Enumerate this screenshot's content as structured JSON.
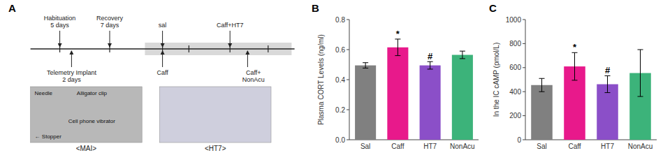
{
  "chart_data": [
    {
      "type": "diagram",
      "title": "A",
      "annotations": [
        "Habituation\n5 days",
        "Recovery\n7 days",
        "sal",
        "Caff+HT7",
        "Telemetry Implant\n2 days",
        "Caff",
        "Caff+\nNonAcu",
        "Needle",
        "Alligator clip",
        "Cell phone vibrator",
        "← Stopper",
        "<MAI>",
        "<HT7>"
      ]
    },
    {
      "type": "bar",
      "title": "B",
      "categories": [
        "Sal",
        "Caff",
        "HT7",
        "NonAcu"
      ],
      "values": [
        0.495,
        0.615,
        0.495,
        0.565
      ],
      "errors": [
        0.018,
        0.055,
        0.025,
        0.025
      ],
      "colors": [
        "#808080",
        "#E8198B",
        "#8B4FC8",
        "#3CB37A"
      ],
      "ylabel": "Plasma CORT Levels (ng/ml)",
      "ylim": [
        0,
        0.8
      ],
      "yticks": [
        {
          "value": 0,
          "label": "0.0"
        },
        0.2,
        0.4,
        0.6,
        0.8
      ],
      "annotations": [
        {
          "text": "*",
          "category": "Caff"
        },
        {
          "text": "#",
          "category": "HT7"
        }
      ]
    },
    {
      "type": "bar",
      "title": "C",
      "categories": [
        "Sal",
        "Caff",
        "HT7",
        "NonAcu"
      ],
      "values": [
        455,
        610,
        462,
        555
      ],
      "errors": [
        55,
        115,
        70,
        195
      ],
      "colors": [
        "#808080",
        "#E8198B",
        "#8B4FC8",
        "#3CB37A"
      ],
      "ylabel": "In the IC cAMP (pmol/L)",
      "ylim": [
        0,
        1000
      ],
      "yticks": [
        0,
        200,
        400,
        600,
        800,
        1000
      ],
      "annotations": [
        {
          "text": "*",
          "category": "Caff"
        },
        {
          "text": "#",
          "category": "HT7"
        }
      ]
    }
  ]
}
